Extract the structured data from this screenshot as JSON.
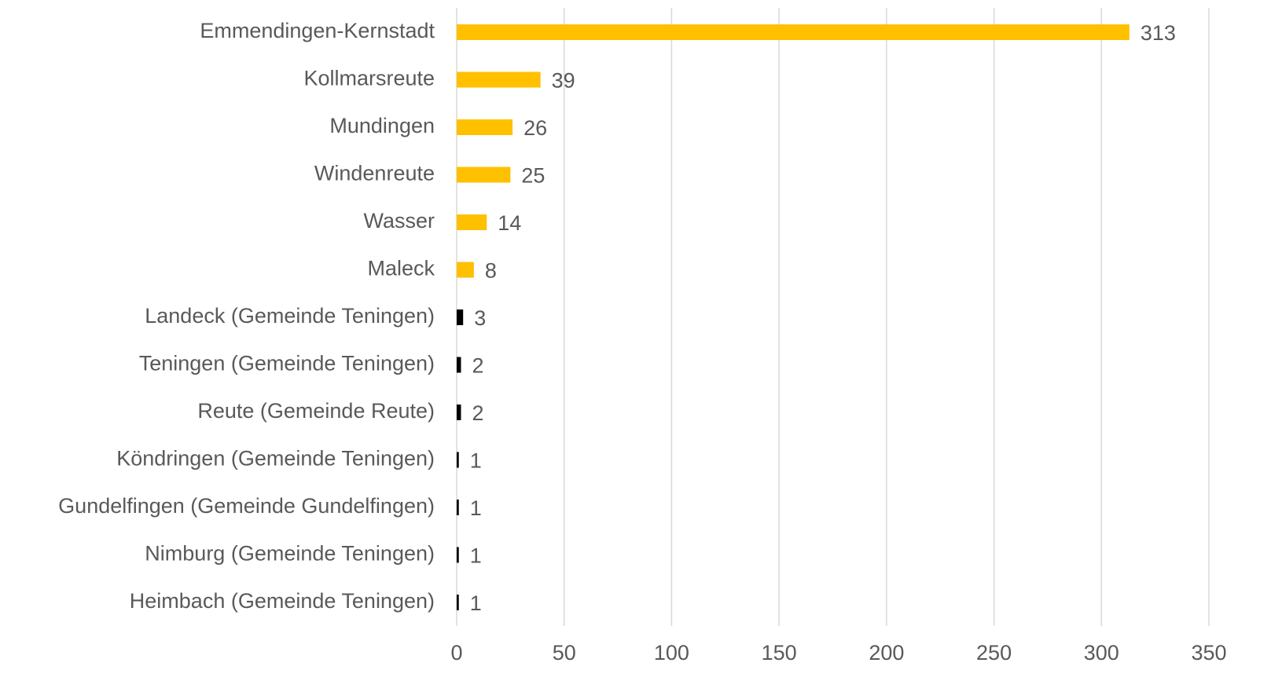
{
  "chart_data": {
    "type": "hbar",
    "categories": [
      "Emmendingen-Kernstadt",
      "Kollmarsreute",
      "Mundingen",
      "Windenreute",
      "Wasser",
      "Maleck",
      "Landeck (Gemeinde Teningen)",
      "Teningen (Gemeinde Teningen)",
      "Reute (Gemeinde Reute)",
      "Köndringen (Gemeinde Teningen)",
      "Gundelfingen (Gemeinde Gundelfingen)",
      "Nimburg (Gemeinde Teningen)",
      "Heimbach (Gemeinde Teningen)"
    ],
    "values": [
      313,
      39,
      26,
      25,
      14,
      8,
      3,
      2,
      2,
      1,
      1,
      1,
      1
    ],
    "colors": [
      "#ffc000",
      "#ffc000",
      "#ffc000",
      "#ffc000",
      "#ffc000",
      "#ffc000",
      "#000000",
      "#000000",
      "#000000",
      "#000000",
      "#000000",
      "#000000",
      "#000000"
    ],
    "xlim": [
      0,
      350
    ],
    "xticks": [
      0,
      50,
      100,
      150,
      200,
      250,
      300,
      350
    ],
    "grid": true
  }
}
